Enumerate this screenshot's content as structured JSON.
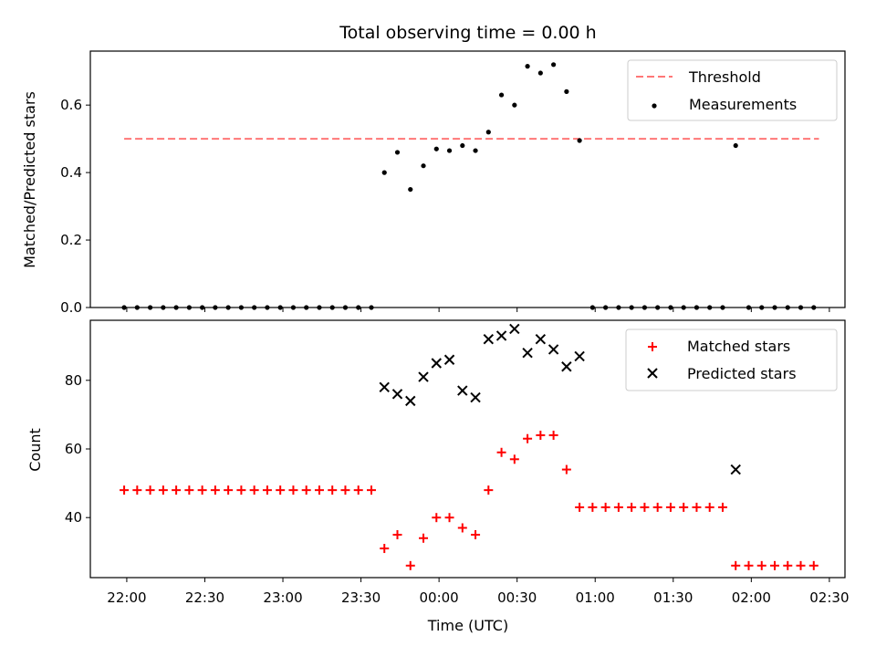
{
  "chart_data": [
    {
      "panel": "top",
      "type": "scatter",
      "title": "Total observing time = 0.00 h",
      "ylabel": "Matched/Predicted stars",
      "ylim": [
        0,
        0.76
      ],
      "yticks": [
        "0.0",
        "0.2",
        "0.4",
        "0.6"
      ],
      "ytick_values": [
        0,
        0.2,
        0.4,
        0.6
      ],
      "threshold": {
        "value": 0.5,
        "x_start": "21:59",
        "x_end": "02:26",
        "color": "#ff7777",
        "style": "dashed"
      },
      "legend": {
        "position": "top-right",
        "entries": [
          "Threshold",
          "Measurements"
        ]
      },
      "series": [
        {
          "name": "Measurements",
          "marker": "dot",
          "color": "#000000",
          "points": [
            [
              "21:59",
              0
            ],
            [
              "22:04",
              0
            ],
            [
              "22:09",
              0
            ],
            [
              "22:14",
              0
            ],
            [
              "22:19",
              0
            ],
            [
              "22:24",
              0
            ],
            [
              "22:29",
              0
            ],
            [
              "22:34",
              0
            ],
            [
              "22:39",
              0
            ],
            [
              "22:44",
              0
            ],
            [
              "22:49",
              0
            ],
            [
              "22:54",
              0
            ],
            [
              "22:59",
              0
            ],
            [
              "23:04",
              0
            ],
            [
              "23:09",
              0
            ],
            [
              "23:14",
              0
            ],
            [
              "23:19",
              0
            ],
            [
              "23:24",
              0
            ],
            [
              "23:29",
              0
            ],
            [
              "23:34",
              0
            ],
            [
              "23:39",
              0.4
            ],
            [
              "23:44",
              0.46
            ],
            [
              "23:49",
              0.35
            ],
            [
              "23:54",
              0.42
            ],
            [
              "23:59",
              0.47
            ],
            [
              "00:04",
              0.465
            ],
            [
              "00:09",
              0.48
            ],
            [
              "00:14",
              0.465
            ],
            [
              "00:19",
              0.52
            ],
            [
              "00:24",
              0.63
            ],
            [
              "00:29",
              0.6
            ],
            [
              "00:34",
              0.715
            ],
            [
              "00:39",
              0.695
            ],
            [
              "00:44",
              0.72
            ],
            [
              "00:49",
              0.64
            ],
            [
              "00:54",
              0.495
            ],
            [
              "00:59",
              0
            ],
            [
              "01:04",
              0
            ],
            [
              "01:09",
              0
            ],
            [
              "01:14",
              0
            ],
            [
              "01:19",
              0
            ],
            [
              "01:24",
              0
            ],
            [
              "01:29",
              0
            ],
            [
              "01:34",
              0
            ],
            [
              "01:39",
              0
            ],
            [
              "01:44",
              0
            ],
            [
              "01:49",
              0
            ],
            [
              "01:54",
              0.48
            ],
            [
              "01:59",
              0
            ],
            [
              "02:04",
              0
            ],
            [
              "02:09",
              0
            ],
            [
              "02:14",
              0
            ],
            [
              "02:19",
              0
            ],
            [
              "02:24",
              0
            ]
          ]
        }
      ]
    },
    {
      "panel": "bottom",
      "type": "scatter",
      "xlabel": "Time (UTC)",
      "ylabel": "Count",
      "ylim": [
        22.5,
        97.5
      ],
      "yticks": [
        "40",
        "60",
        "80"
      ],
      "ytick_values": [
        40,
        60,
        80
      ],
      "xticks": [
        "22:00",
        "22:30",
        "23:00",
        "23:30",
        "00:00",
        "00:30",
        "01:00",
        "01:30",
        "02:00",
        "02:30"
      ],
      "xlim": [
        "21:46",
        "02:36"
      ],
      "legend": {
        "position": "top-right",
        "entries": [
          "Matched stars",
          "Predicted stars"
        ]
      },
      "series": [
        {
          "name": "Matched stars",
          "marker": "plus",
          "color": "#ff0000",
          "points": [
            [
              "21:59",
              48
            ],
            [
              "22:04",
              48
            ],
            [
              "22:09",
              48
            ],
            [
              "22:14",
              48
            ],
            [
              "22:19",
              48
            ],
            [
              "22:24",
              48
            ],
            [
              "22:29",
              48
            ],
            [
              "22:34",
              48
            ],
            [
              "22:39",
              48
            ],
            [
              "22:44",
              48
            ],
            [
              "22:49",
              48
            ],
            [
              "22:54",
              48
            ],
            [
              "22:59",
              48
            ],
            [
              "23:04",
              48
            ],
            [
              "23:09",
              48
            ],
            [
              "23:14",
              48
            ],
            [
              "23:19",
              48
            ],
            [
              "23:24",
              48
            ],
            [
              "23:29",
              48
            ],
            [
              "23:34",
              48
            ],
            [
              "23:39",
              31
            ],
            [
              "23:44",
              35
            ],
            [
              "23:49",
              26
            ],
            [
              "23:54",
              34
            ],
            [
              "23:59",
              40
            ],
            [
              "00:04",
              40
            ],
            [
              "00:09",
              37
            ],
            [
              "00:14",
              35
            ],
            [
              "00:19",
              48
            ],
            [
              "00:24",
              59
            ],
            [
              "00:29",
              57
            ],
            [
              "00:34",
              63
            ],
            [
              "00:39",
              64
            ],
            [
              "00:44",
              64
            ],
            [
              "00:49",
              54
            ],
            [
              "00:54",
              43
            ],
            [
              "00:59",
              43
            ],
            [
              "01:04",
              43
            ],
            [
              "01:09",
              43
            ],
            [
              "01:14",
              43
            ],
            [
              "01:19",
              43
            ],
            [
              "01:24",
              43
            ],
            [
              "01:29",
              43
            ],
            [
              "01:34",
              43
            ],
            [
              "01:39",
              43
            ],
            [
              "01:44",
              43
            ],
            [
              "01:49",
              43
            ],
            [
              "01:54",
              26
            ],
            [
              "01:59",
              26
            ],
            [
              "02:04",
              26
            ],
            [
              "02:09",
              26
            ],
            [
              "02:14",
              26
            ],
            [
              "02:19",
              26
            ],
            [
              "02:24",
              26
            ]
          ]
        },
        {
          "name": "Predicted stars",
          "marker": "x",
          "color": "#000000",
          "points": [
            [
              "23:39",
              78
            ],
            [
              "23:44",
              76
            ],
            [
              "23:49",
              74
            ],
            [
              "23:54",
              81
            ],
            [
              "23:59",
              85
            ],
            [
              "00:04",
              86
            ],
            [
              "00:09",
              77
            ],
            [
              "00:14",
              75
            ],
            [
              "00:19",
              92
            ],
            [
              "00:24",
              93
            ],
            [
              "00:29",
              95
            ],
            [
              "00:34",
              88
            ],
            [
              "00:39",
              92
            ],
            [
              "00:44",
              89
            ],
            [
              "00:49",
              84
            ],
            [
              "00:54",
              87
            ],
            [
              "01:54",
              54
            ]
          ]
        }
      ]
    }
  ]
}
